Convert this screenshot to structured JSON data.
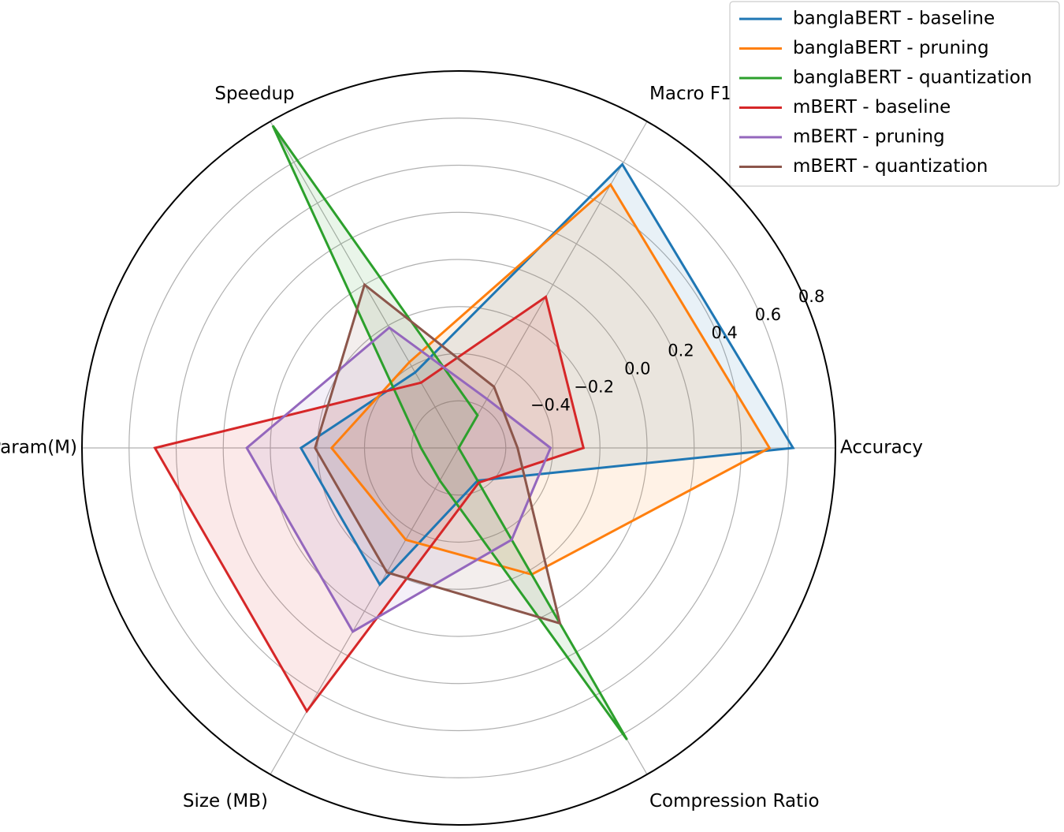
{
  "chart_data": {
    "type": "radar",
    "axes": [
      "Accuracy",
      "Macro F1",
      "Speedup",
      "#Param(M)",
      "Size (MB)",
      "Compression Ratio"
    ],
    "rlim": [
      -0.8,
      0.8
    ],
    "rticks": [
      -0.4,
      -0.2,
      0.0,
      0.2,
      0.4,
      0.6,
      0.8
    ],
    "rtick_labels": [
      "−0.4",
      "−0.2",
      "0.0",
      "0.2",
      "0.4",
      "0.6",
      "0.8"
    ],
    "series": [
      {
        "name": "banglaBERT - baseline",
        "color": "#1f77b4",
        "values": [
          0.62,
          0.59,
          -0.43,
          -0.13,
          -0.13,
          -0.64
        ]
      },
      {
        "name": "banglaBERT - pruning",
        "color": "#ff7f0e",
        "values": [
          0.52,
          0.49,
          -0.38,
          -0.26,
          -0.35,
          -0.18
        ]
      },
      {
        "name": "banglaBERT - quantization",
        "color": "#2ca02c",
        "values": [
          -0.8,
          -0.64,
          0.78,
          -0.64,
          -0.64,
          0.63
        ]
      },
      {
        "name": "mBERT - baseline",
        "color": "#d62728",
        "values": [
          -0.27,
          -0.06,
          -0.48,
          0.49,
          0.49,
          -0.63
        ]
      },
      {
        "name": "mBERT - pruning",
        "color": "#9467bd",
        "values": [
          -0.41,
          -0.56,
          -0.21,
          0.1,
          0.1,
          -0.35
        ]
      },
      {
        "name": "mBERT - quantization",
        "color": "#8c564b",
        "values": [
          -0.55,
          -0.5,
          0.0,
          -0.19,
          -0.19,
          0.06
        ]
      }
    ]
  }
}
